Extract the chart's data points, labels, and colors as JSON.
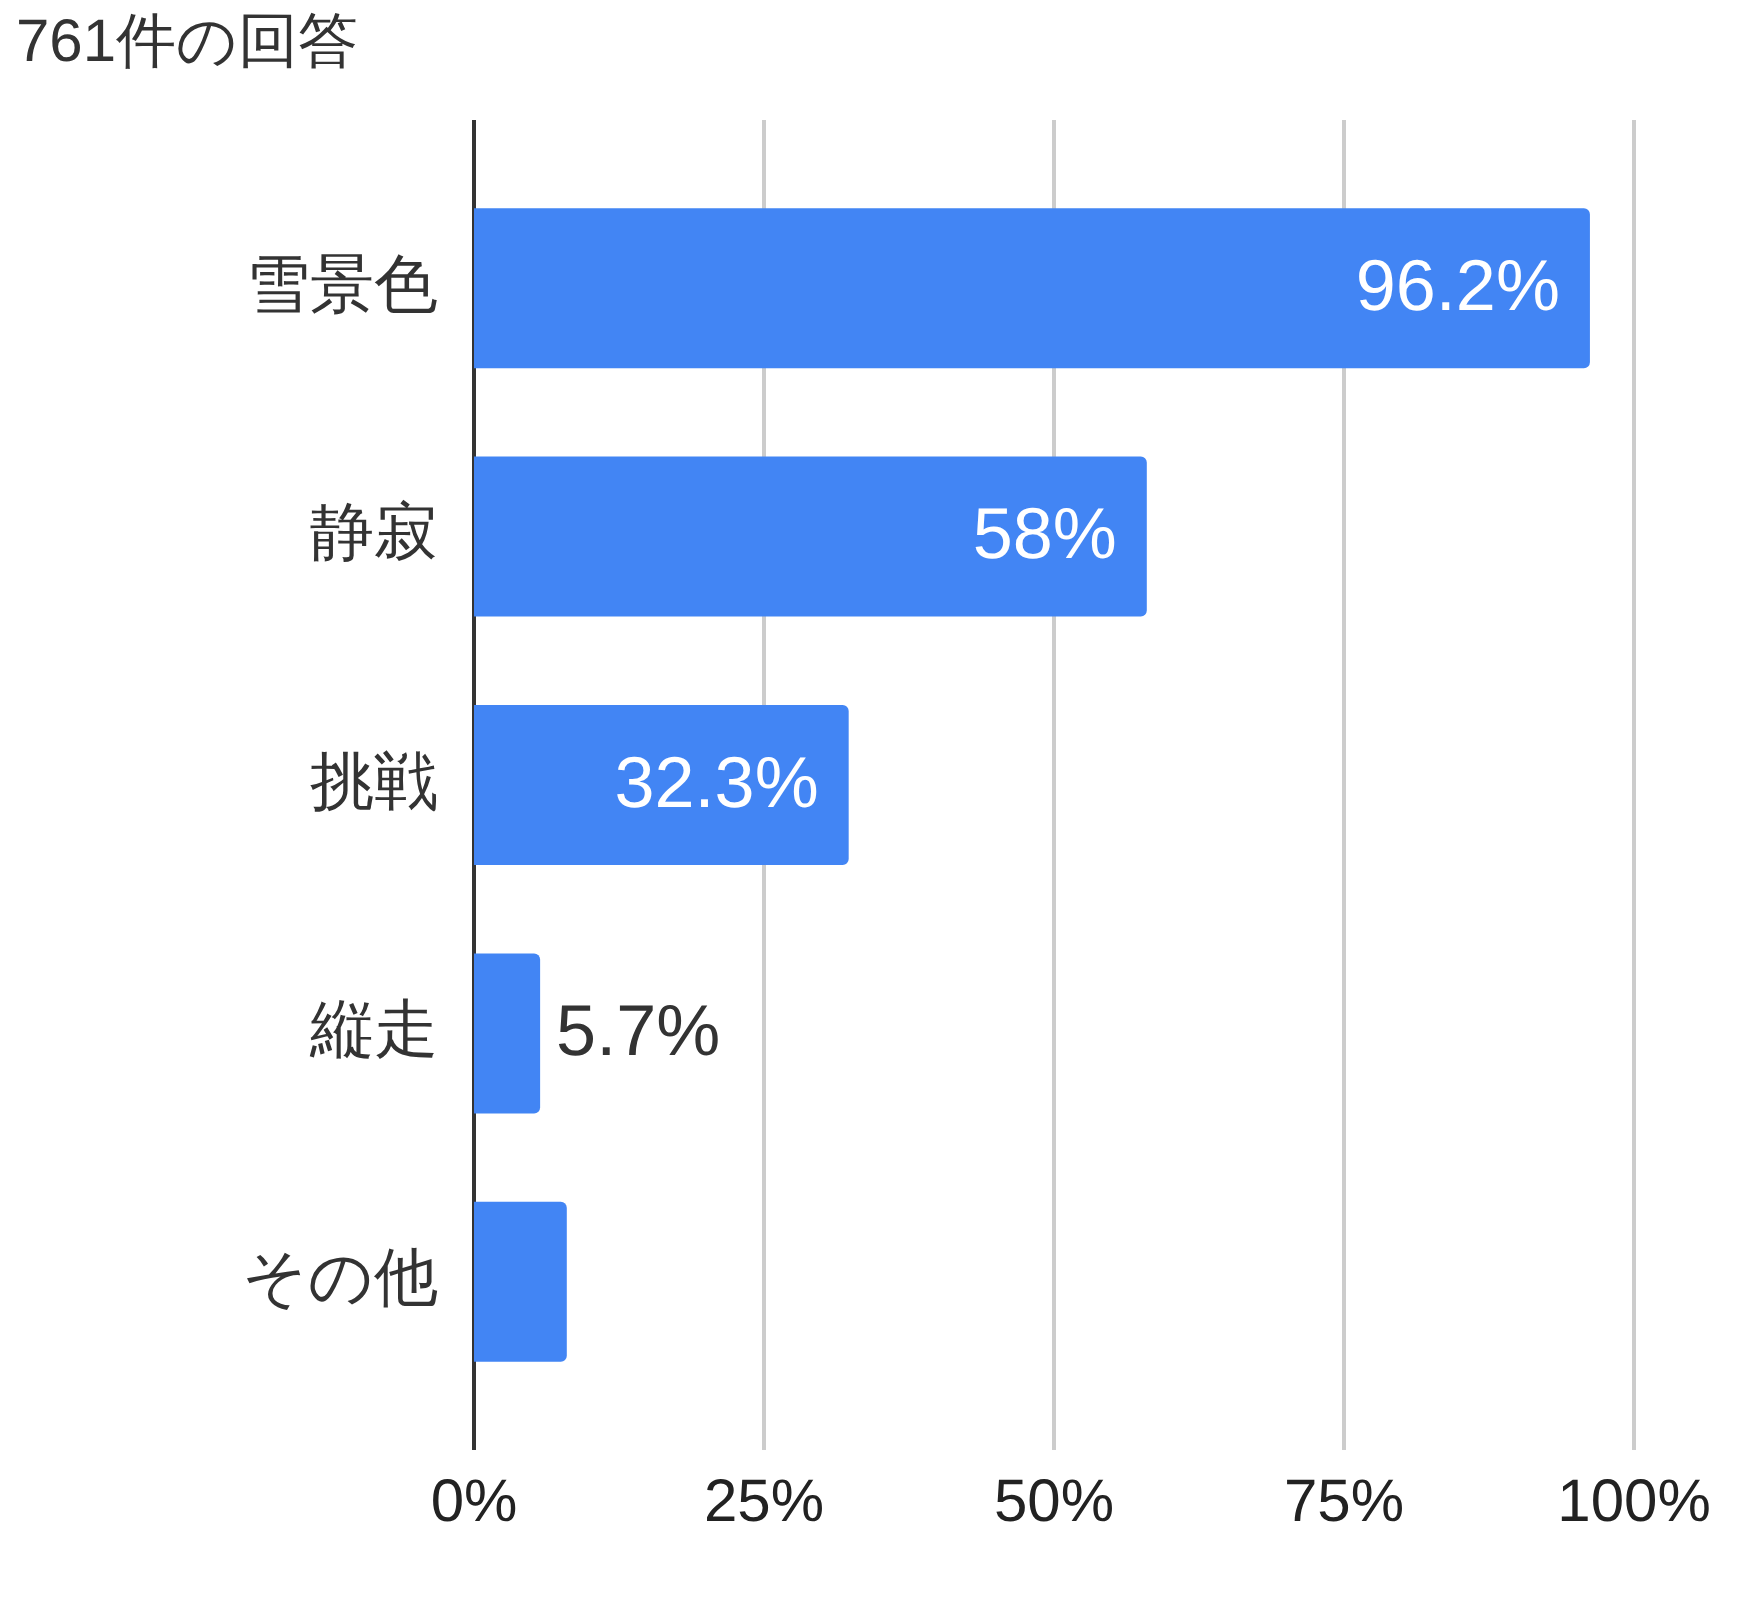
{
  "chart_data": {
    "type": "bar",
    "orientation": "horizontal",
    "title": "761件の回答",
    "categories": [
      "雪景色",
      "静寂",
      "挑戦",
      "縦走",
      "その他"
    ],
    "values": [
      96.2,
      58,
      32.3,
      5.7,
      8
    ],
    "value_labels": [
      "96.2%",
      "58%",
      "32.3%",
      "5.7%",
      null
    ],
    "color": "#4285f4",
    "xlim": [
      0,
      100
    ],
    "xticks": [
      {
        "value": 0,
        "label": "0%"
      },
      {
        "value": 25,
        "label": "25%"
      },
      {
        "value": 50,
        "label": "50%"
      },
      {
        "value": 75,
        "label": "75%"
      },
      {
        "value": 100,
        "label": "100%"
      }
    ],
    "grid": "x"
  }
}
